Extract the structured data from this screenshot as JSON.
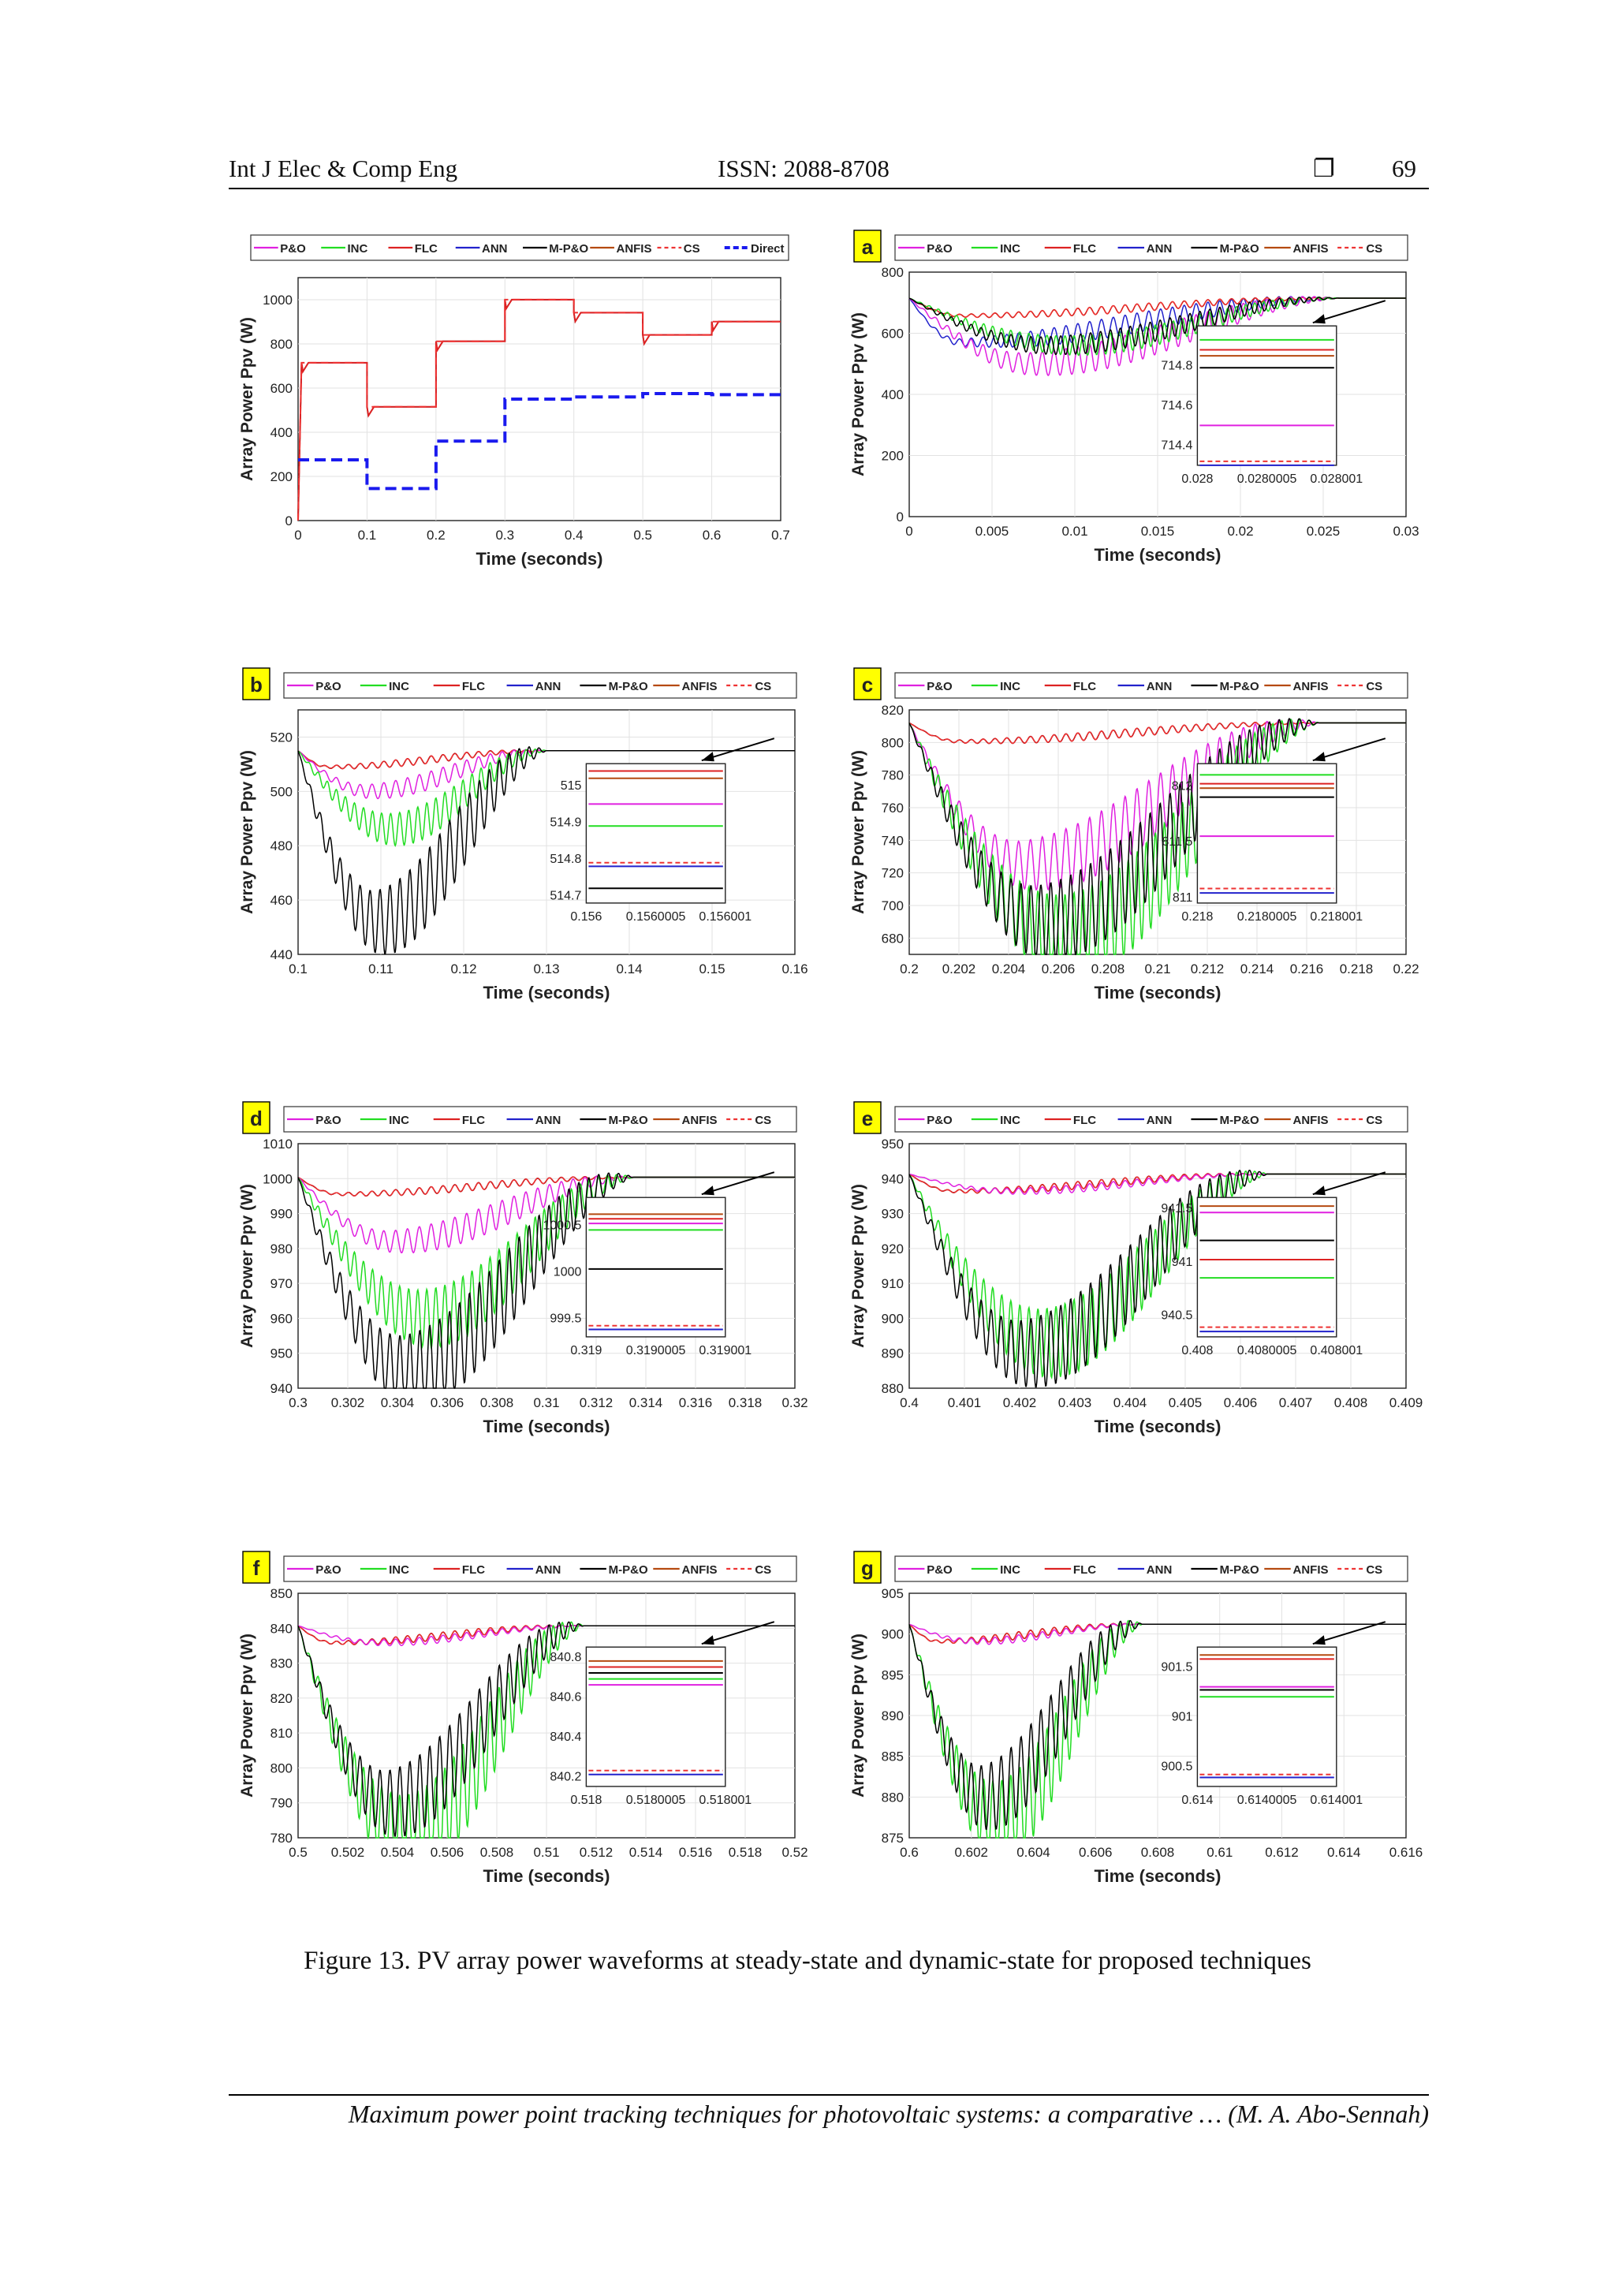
{
  "header": {
    "journal": "Int J Elec & Comp Eng",
    "issn": "ISSN: 2088-8708",
    "mark": "❐",
    "page": "69"
  },
  "caption": "Figure 13. PV array power waveforms at steady-state and dynamic-state for proposed techniques",
  "footer": "Maximum power point tracking techniques for photovoltaic systems: a comparative … (M. A. Abo-Sennah)",
  "colors": {
    "P&O": "#e020e0",
    "INC": "#22dd22",
    "FLC": "#dd2222",
    "ANN": "#2222cc",
    "M-P&O": "#000000",
    "ANFIS": "#b54a10",
    "CS": "#ee3333",
    "Direct": "#1a1aee",
    "label_box": "#ffff00"
  },
  "chart_data": [
    {
      "id": "overview",
      "label": "",
      "type": "line",
      "xlabel": "Time (seconds)",
      "ylabel": "Array Power Ppv (W)",
      "xlim": [
        0,
        0.7
      ],
      "ylim": [
        0,
        1100
      ],
      "xticks": [
        "0",
        "0.1",
        "0.2",
        "0.3",
        "0.4",
        "0.5",
        "0.6",
        "0.7"
      ],
      "yticks": [
        "0",
        "200",
        "400",
        "600",
        "800",
        "1000"
      ],
      "legend": [
        "P&O",
        "INC",
        "FLC",
        "ANN",
        "M-P&O",
        "ANFIS",
        "CS",
        "Direct"
      ],
      "series": [
        {
          "name": "CS",
          "x": [
            0,
            0.005,
            0.1,
            0.1,
            0.2,
            0.2,
            0.3,
            0.3,
            0.4,
            0.4,
            0.5,
            0.5,
            0.6,
            0.6,
            0.7
          ],
          "y": [
            0,
            714.8,
            714.8,
            515,
            515,
            811.9,
            811.9,
            1000.4,
            1000.4,
            941.3,
            941.3,
            840.7,
            840.7,
            901.2,
            901.2
          ]
        },
        {
          "name": "Direct",
          "x": [
            0,
            0.1,
            0.1,
            0.2,
            0.2,
            0.3,
            0.3,
            0.4,
            0.4,
            0.5,
            0.5,
            0.6,
            0.6,
            0.7
          ],
          "y": [
            275,
            275,
            145,
            145,
            360,
            360,
            550,
            550,
            560,
            560,
            575,
            575,
            570,
            570
          ]
        }
      ]
    },
    {
      "id": "a",
      "label": "a",
      "type": "line",
      "xlabel": "Time (seconds)",
      "ylabel": "Array Power Ppv (W)",
      "xlim": [
        0,
        0.03
      ],
      "ylim": [
        0,
        800
      ],
      "xticks": [
        "0",
        "0.005",
        "0.01",
        "0.015",
        "0.02",
        "0.025",
        "0.03"
      ],
      "yticks": [
        "0",
        "200",
        "400",
        "600",
        "800"
      ],
      "legend": [
        "P&O",
        "INC",
        "FLC",
        "ANN",
        "M-P&O",
        "ANFIS",
        "CS"
      ],
      "steady": 714.8,
      "dip": {
        "P&O": 500,
        "INC": 560,
        "M-P&O": 560,
        "ANN": 570
      },
      "settle_time": 0.026,
      "inset": {
        "xticks": [
          "0.028",
          "0.0280005",
          "0.028001"
        ],
        "yticks": [
          "714.4",
          "714.6",
          "714.8"
        ],
        "ylim": [
          714.3,
          715.0
        ],
        "levels": {
          "INC": 714.93,
          "FLC": 714.88,
          "ANFIS": 714.85,
          "M-P&O": 714.79,
          "P&O": 714.5,
          "ANN": 714.3,
          "CS": 714.32
        }
      }
    },
    {
      "id": "b",
      "label": "b",
      "type": "line",
      "xlabel": "Time (seconds)",
      "ylabel": "Array Power Ppv (W)",
      "xlim": [
        0.1,
        0.16
      ],
      "ylim": [
        440,
        530
      ],
      "xticks": [
        "0.1",
        "0.11",
        "0.12",
        "0.13",
        "0.14",
        "0.15",
        "0.16"
      ],
      "yticks": [
        "440",
        "460",
        "480",
        "500",
        "520"
      ],
      "legend": [
        "P&O",
        "INC",
        "FLC",
        "ANN",
        "M-P&O",
        "ANFIS",
        "CS"
      ],
      "steady": 515,
      "dip": {
        "P&O": 500,
        "INC": 486,
        "M-P&O": 452
      },
      "settle_time": 0.13,
      "inset": {
        "xticks": [
          "0.156",
          "0.1560005",
          "0.156001"
        ],
        "yticks": [
          "514.7",
          "514.8",
          "514.9",
          "515"
        ],
        "ylim": [
          514.68,
          515.06
        ],
        "levels": {
          "FLC": 515.04,
          "ANFIS": 515.02,
          "P&O": 514.95,
          "INC": 514.89,
          "CS": 514.79,
          "ANN": 514.78,
          "M-P&O": 514.72
        }
      }
    },
    {
      "id": "c",
      "label": "c",
      "type": "line",
      "xlabel": "Time (seconds)",
      "ylabel": "Array Power Ppv (W)",
      "xlim": [
        0.2,
        0.22
      ],
      "ylim": [
        670,
        820
      ],
      "xticks": [
        "0.2",
        "0.202",
        "0.204",
        "0.206",
        "0.208",
        "0.21",
        "0.212",
        "0.214",
        "0.216",
        "0.218",
        "0.22"
      ],
      "yticks": [
        "680",
        "700",
        "720",
        "740",
        "760",
        "780",
        "800",
        "820"
      ],
      "legend": [
        "P&O",
        "INC",
        "FLC",
        "ANN",
        "M-P&O",
        "ANFIS",
        "CS"
      ],
      "steady": 812,
      "dip": {
        "P&O": 725,
        "INC": 680,
        "M-P&O": 690
      },
      "settle_time": 0.2165,
      "inset": {
        "xticks": [
          "0.218",
          "0.2180005",
          "0.218001"
        ],
        "yticks": [
          "811",
          "811.5",
          "812"
        ],
        "ylim": [
          810.95,
          812.2
        ],
        "levels": {
          "INC": 812.1,
          "FLC": 812.02,
          "ANFIS": 811.98,
          "M-P&O": 811.9,
          "P&O": 811.55,
          "CS": 811.08,
          "ANN": 811.04
        }
      }
    },
    {
      "id": "d",
      "label": "d",
      "type": "line",
      "xlabel": "Time (seconds)",
      "ylabel": "Array Power Ppv (W)",
      "xlim": [
        0.3,
        0.32
      ],
      "ylim": [
        940,
        1010
      ],
      "xticks": [
        "0.3",
        "0.302",
        "0.304",
        "0.306",
        "0.308",
        "0.31",
        "0.312",
        "0.314",
        "0.316",
        "0.318",
        "0.32"
      ],
      "yticks": [
        "940",
        "950",
        "960",
        "970",
        "980",
        "990",
        "1000",
        "1010"
      ],
      "legend": [
        "P&O",
        "INC",
        "FLC",
        "ANN",
        "M-P&O",
        "ANFIS",
        "CS"
      ],
      "steady": 1000.4,
      "dip": {
        "P&O": 982,
        "INC": 960,
        "M-P&O": 945
      },
      "settle_time": 0.3135,
      "inset": {
        "xticks": [
          "0.319",
          "0.3190005",
          "0.319001"
        ],
        "yticks": [
          "999.5",
          "1000",
          "1000.5"
        ],
        "ylim": [
          999.3,
          1000.8
        ],
        "levels": {
          "ANFIS": 1000.62,
          "FLC": 1000.57,
          "P&O": 1000.52,
          "INC": 1000.45,
          "M-P&O": 1000.03,
          "CS": 999.42,
          "ANN": 999.38
        }
      }
    },
    {
      "id": "e",
      "label": "e",
      "type": "line",
      "xlabel": "Time (seconds)",
      "ylabel": "Array Power Ppv (W)",
      "xlim": [
        0.4,
        0.409
      ],
      "ylim": [
        880,
        950
      ],
      "xticks": [
        "0.4",
        "0.401",
        "0.402",
        "0.403",
        "0.404",
        "0.405",
        "0.406",
        "0.407",
        "0.408",
        "0.409"
      ],
      "yticks": [
        "880",
        "890",
        "900",
        "910",
        "920",
        "930",
        "940",
        "950"
      ],
      "legend": [
        "P&O",
        "INC",
        "FLC",
        "ANN",
        "M-P&O",
        "ANFIS",
        "CS"
      ],
      "steady": 941.3,
      "dip": {
        "INC": 893,
        "M-P&O": 890
      },
      "settle_time": 0.4065,
      "inset": {
        "xticks": [
          "0.408",
          "0.4080005",
          "0.408001"
        ],
        "yticks": [
          "940.5",
          "941",
          "941.5"
        ],
        "ylim": [
          940.3,
          941.6
        ],
        "levels": {
          "ANFIS": 941.52,
          "P&O": 941.46,
          "M-P&O": 941.2,
          "FLC": 941.02,
          "INC": 940.85,
          "CS": 940.39,
          "ANN": 940.35
        }
      }
    },
    {
      "id": "f",
      "label": "f",
      "type": "line",
      "xlabel": "Time (seconds)",
      "ylabel": "Array Power Ppv (W)",
      "xlim": [
        0.5,
        0.52
      ],
      "ylim": [
        780,
        850
      ],
      "xticks": [
        "0.5",
        "0.502",
        "0.504",
        "0.506",
        "0.508",
        "0.51",
        "0.512",
        "0.514",
        "0.516",
        "0.518",
        "0.52"
      ],
      "yticks": [
        "780",
        "790",
        "800",
        "810",
        "820",
        "830",
        "840",
        "850"
      ],
      "legend": [
        "P&O",
        "INC",
        "FLC",
        "ANN",
        "M-P&O",
        "ANFIS",
        "CS"
      ],
      "steady": 840.7,
      "dip": {
        "INC": 780,
        "M-P&O": 790
      },
      "settle_time": 0.5115,
      "inset": {
        "xticks": [
          "0.518",
          "0.5180005",
          "0.518001"
        ],
        "yticks": [
          "840.2",
          "840.4",
          "840.6",
          "840.8"
        ],
        "ylim": [
          840.15,
          840.85
        ],
        "levels": {
          "ANFIS": 840.78,
          "FLC": 840.75,
          "M-P&O": 840.72,
          "INC": 840.69,
          "P&O": 840.66,
          "CS": 840.23,
          "ANN": 840.21
        }
      }
    },
    {
      "id": "g",
      "label": "g",
      "type": "line",
      "xlabel": "Time (seconds)",
      "ylabel": "Array Power Ppv (W)",
      "xlim": [
        0.6,
        0.616
      ],
      "ylim": [
        875,
        905
      ],
      "xticks": [
        "0.6",
        "0.602",
        "0.604",
        "0.606",
        "0.608",
        "0.61",
        "0.612",
        "0.614",
        "0.616"
      ],
      "yticks": [
        "875",
        "880",
        "885",
        "890",
        "895",
        "900",
        "905"
      ],
      "legend": [
        "P&O",
        "INC",
        "FLC",
        "ANN",
        "M-P&O",
        "ANFIS",
        "CS"
      ],
      "steady": 901.2,
      "dip": {
        "INC": 877,
        "M-P&O": 880
      },
      "settle_time": 0.6075,
      "inset": {
        "xticks": [
          "0.614",
          "0.6140005",
          "0.614001"
        ],
        "yticks": [
          "900.5",
          "901",
          "901.5"
        ],
        "ylim": [
          900.3,
          901.7
        ],
        "levels": {
          "ANFIS": 901.62,
          "FLC": 901.58,
          "P&O": 901.3,
          "M-P&O": 901.27,
          "INC": 901.2,
          "CS": 900.42,
          "ANN": 900.39
        }
      }
    }
  ]
}
